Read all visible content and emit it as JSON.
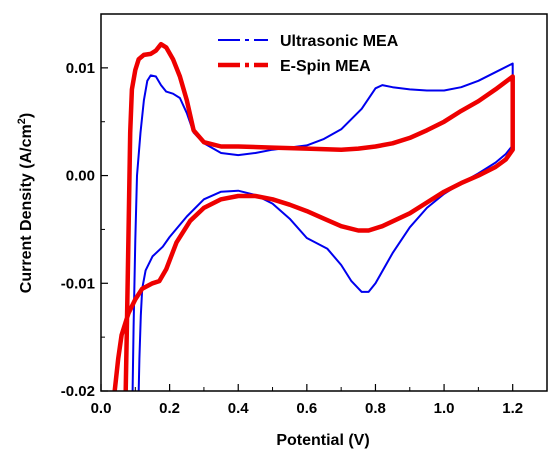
{
  "chart_data": {
    "type": "line",
    "xlabel": "Potential (V)",
    "ylabel": "Current Density (A/cm",
    "ylabel_sup": "2",
    "ylabel_end": ")",
    "xlim": [
      0.0,
      1.3
    ],
    "ylim": [
      -0.02,
      0.015
    ],
    "x_ticks": [
      0.0,
      0.2,
      0.4,
      0.6,
      0.8,
      1.0,
      1.2
    ],
    "x_tick_labels": [
      "0.0",
      "0.2",
      "0.4",
      "0.6",
      "0.8",
      "1.0",
      "1.2"
    ],
    "y_ticks": [
      -0.02,
      -0.01,
      0.0,
      0.01
    ],
    "y_tick_labels": [
      "-0.02",
      "-0.01",
      "0.00",
      "0.01"
    ],
    "grid": false,
    "legend_position": "top-center",
    "series": [
      {
        "name": "Ultrasonic MEA",
        "color": "#0000ee",
        "style": "thin",
        "points": [
          [
            0.11,
            -0.02
          ],
          [
            0.112,
            -0.017
          ],
          [
            0.116,
            -0.013
          ],
          [
            0.12,
            -0.0105
          ],
          [
            0.13,
            -0.0088
          ],
          [
            0.15,
            -0.0075
          ],
          [
            0.18,
            -0.0066
          ],
          [
            0.2,
            -0.0057
          ],
          [
            0.25,
            -0.0038
          ],
          [
            0.3,
            -0.0022
          ],
          [
            0.35,
            -0.0015
          ],
          [
            0.4,
            -0.0014
          ],
          [
            0.45,
            -0.0018
          ],
          [
            0.5,
            -0.0026
          ],
          [
            0.55,
            -0.004
          ],
          [
            0.6,
            -0.0058
          ],
          [
            0.63,
            -0.0063
          ],
          [
            0.66,
            -0.0068
          ],
          [
            0.7,
            -0.0083
          ],
          [
            0.73,
            -0.0098
          ],
          [
            0.76,
            -0.0108
          ],
          [
            0.78,
            -0.0108
          ],
          [
            0.8,
            -0.01
          ],
          [
            0.85,
            -0.0072
          ],
          [
            0.9,
            -0.0048
          ],
          [
            0.95,
            -0.003
          ],
          [
            1.0,
            -0.0017
          ],
          [
            1.05,
            -0.0007
          ],
          [
            1.1,
            0.0002
          ],
          [
            1.15,
            0.0012
          ],
          [
            1.18,
            0.002
          ],
          [
            1.2,
            0.0028
          ],
          [
            1.2,
            0.0104
          ],
          [
            1.15,
            0.0096
          ],
          [
            1.1,
            0.0088
          ],
          [
            1.05,
            0.0082
          ],
          [
            1.0,
            0.0079
          ],
          [
            0.95,
            0.0079
          ],
          [
            0.9,
            0.008
          ],
          [
            0.85,
            0.0082
          ],
          [
            0.82,
            0.0084
          ],
          [
            0.8,
            0.0081
          ],
          [
            0.76,
            0.0062
          ],
          [
            0.7,
            0.0043
          ],
          [
            0.65,
            0.0034
          ],
          [
            0.6,
            0.0028
          ],
          [
            0.5,
            0.0024
          ],
          [
            0.45,
            0.0021
          ],
          [
            0.4,
            0.0019
          ],
          [
            0.35,
            0.0021
          ],
          [
            0.3,
            0.003
          ],
          [
            0.27,
            0.004
          ],
          [
            0.25,
            0.0058
          ],
          [
            0.23,
            0.0072
          ],
          [
            0.21,
            0.0076
          ],
          [
            0.19,
            0.0078
          ],
          [
            0.175,
            0.0084
          ],
          [
            0.16,
            0.0092
          ],
          [
            0.145,
            0.0093
          ],
          [
            0.135,
            0.0088
          ],
          [
            0.125,
            0.007
          ],
          [
            0.115,
            0.004
          ],
          [
            0.105,
            0.0
          ],
          [
            0.1,
            -0.006
          ],
          [
            0.095,
            -0.014
          ],
          [
            0.092,
            -0.02
          ]
        ]
      },
      {
        "name": "E-Spin MEA",
        "color": "#ee0000",
        "style": "thick",
        "points": [
          [
            0.04,
            -0.02
          ],
          [
            0.05,
            -0.017
          ],
          [
            0.06,
            -0.0148
          ],
          [
            0.08,
            -0.0128
          ],
          [
            0.1,
            -0.0115
          ],
          [
            0.12,
            -0.0105
          ],
          [
            0.15,
            -0.01
          ],
          [
            0.17,
            -0.0098
          ],
          [
            0.19,
            -0.0087
          ],
          [
            0.22,
            -0.0062
          ],
          [
            0.26,
            -0.0042
          ],
          [
            0.3,
            -0.003
          ],
          [
            0.35,
            -0.0022
          ],
          [
            0.4,
            -0.0019
          ],
          [
            0.45,
            -0.0019
          ],
          [
            0.5,
            -0.0022
          ],
          [
            0.55,
            -0.0027
          ],
          [
            0.6,
            -0.0033
          ],
          [
            0.65,
            -0.004
          ],
          [
            0.7,
            -0.0047
          ],
          [
            0.75,
            -0.0051
          ],
          [
            0.78,
            -0.0051
          ],
          [
            0.82,
            -0.0047
          ],
          [
            0.9,
            -0.0035
          ],
          [
            0.95,
            -0.0025
          ],
          [
            1.0,
            -0.0015
          ],
          [
            1.05,
            -0.0007
          ],
          [
            1.1,
            0.0
          ],
          [
            1.15,
            0.0008
          ],
          [
            1.18,
            0.0015
          ],
          [
            1.2,
            0.0024
          ],
          [
            1.2,
            0.0092
          ],
          [
            1.15,
            0.008
          ],
          [
            1.1,
            0.0069
          ],
          [
            1.05,
            0.006
          ],
          [
            1.0,
            0.005
          ],
          [
            0.95,
            0.0042
          ],
          [
            0.9,
            0.0035
          ],
          [
            0.85,
            0.003
          ],
          [
            0.8,
            0.0027
          ],
          [
            0.75,
            0.0025
          ],
          [
            0.7,
            0.0024
          ],
          [
            0.6,
            0.0025
          ],
          [
            0.5,
            0.0026
          ],
          [
            0.4,
            0.0027
          ],
          [
            0.35,
            0.0027
          ],
          [
            0.3,
            0.0031
          ],
          [
            0.27,
            0.0042
          ],
          [
            0.25,
            0.007
          ],
          [
            0.23,
            0.0092
          ],
          [
            0.21,
            0.0108
          ],
          [
            0.19,
            0.0119
          ],
          [
            0.175,
            0.0122
          ],
          [
            0.16,
            0.0116
          ],
          [
            0.145,
            0.0113
          ],
          [
            0.125,
            0.0112
          ],
          [
            0.11,
            0.0108
          ],
          [
            0.1,
            0.0098
          ],
          [
            0.09,
            0.008
          ],
          [
            0.085,
            0.004
          ],
          [
            0.08,
            -0.006
          ],
          [
            0.075,
            -0.015
          ],
          [
            0.072,
            -0.02
          ]
        ]
      }
    ]
  }
}
